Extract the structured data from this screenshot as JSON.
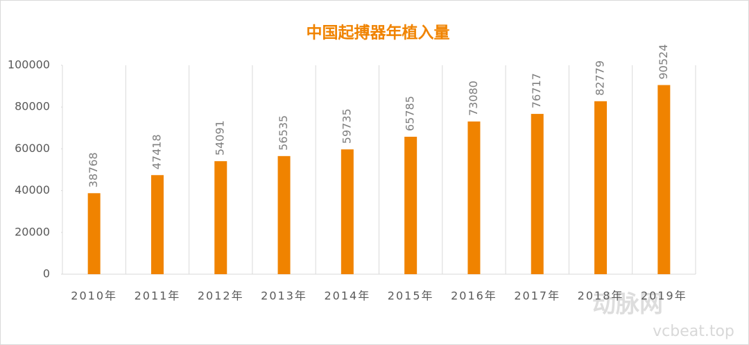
{
  "chart_data": {
    "type": "bar",
    "title": "中国起搏器年植入量",
    "categories": [
      "2010年",
      "2011年",
      "2012年",
      "2013年",
      "2014年",
      "2015年",
      "2016年",
      "2017年",
      "2018年",
      "2019年"
    ],
    "values": [
      38768,
      47418,
      54091,
      56535,
      59735,
      65785,
      73080,
      76717,
      82779,
      90524
    ],
    "color": "#f08300",
    "ylim": [
      0,
      100000
    ],
    "yticks": [
      0,
      20000,
      40000,
      60000,
      80000,
      100000
    ],
    "grid": true,
    "watermark": [
      "动脉网",
      "vcbeat.top"
    ]
  }
}
